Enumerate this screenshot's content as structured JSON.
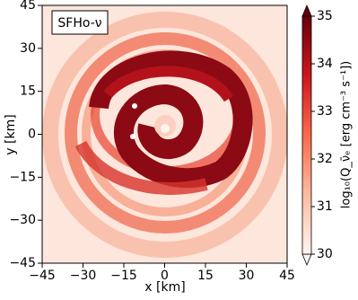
{
  "chart_data": {
    "type": "heatmap",
    "label": "SFHo-ν",
    "xlabel": "x [km]",
    "ylabel": "y [km]",
    "xlim": [
      -45,
      45
    ],
    "xticks": [
      {
        "value": -45,
        "label": "−45"
      },
      {
        "value": -30,
        "label": "−30"
      },
      {
        "value": -15,
        "label": "−15"
      },
      0,
      15,
      30,
      45
    ],
    "ylim": [
      -45,
      45
    ],
    "yticks": [
      {
        "value": -45,
        "label": "−45"
      },
      {
        "value": -30,
        "label": "−30"
      },
      {
        "value": -15,
        "label": "−15"
      },
      0,
      15,
      30,
      45
    ],
    "colorbar": {
      "label": "log₁₀(Q_ν̄ₑ [erg cm⁻³ s⁻¹])",
      "lim": [
        30,
        35
      ],
      "ticks": [
        30,
        31,
        32,
        33,
        34,
        35
      ],
      "colors": [
        "#fff5f0",
        "#fcbba1",
        "#fb6a4a",
        "#cb181d",
        "#67000d"
      ]
    }
  }
}
